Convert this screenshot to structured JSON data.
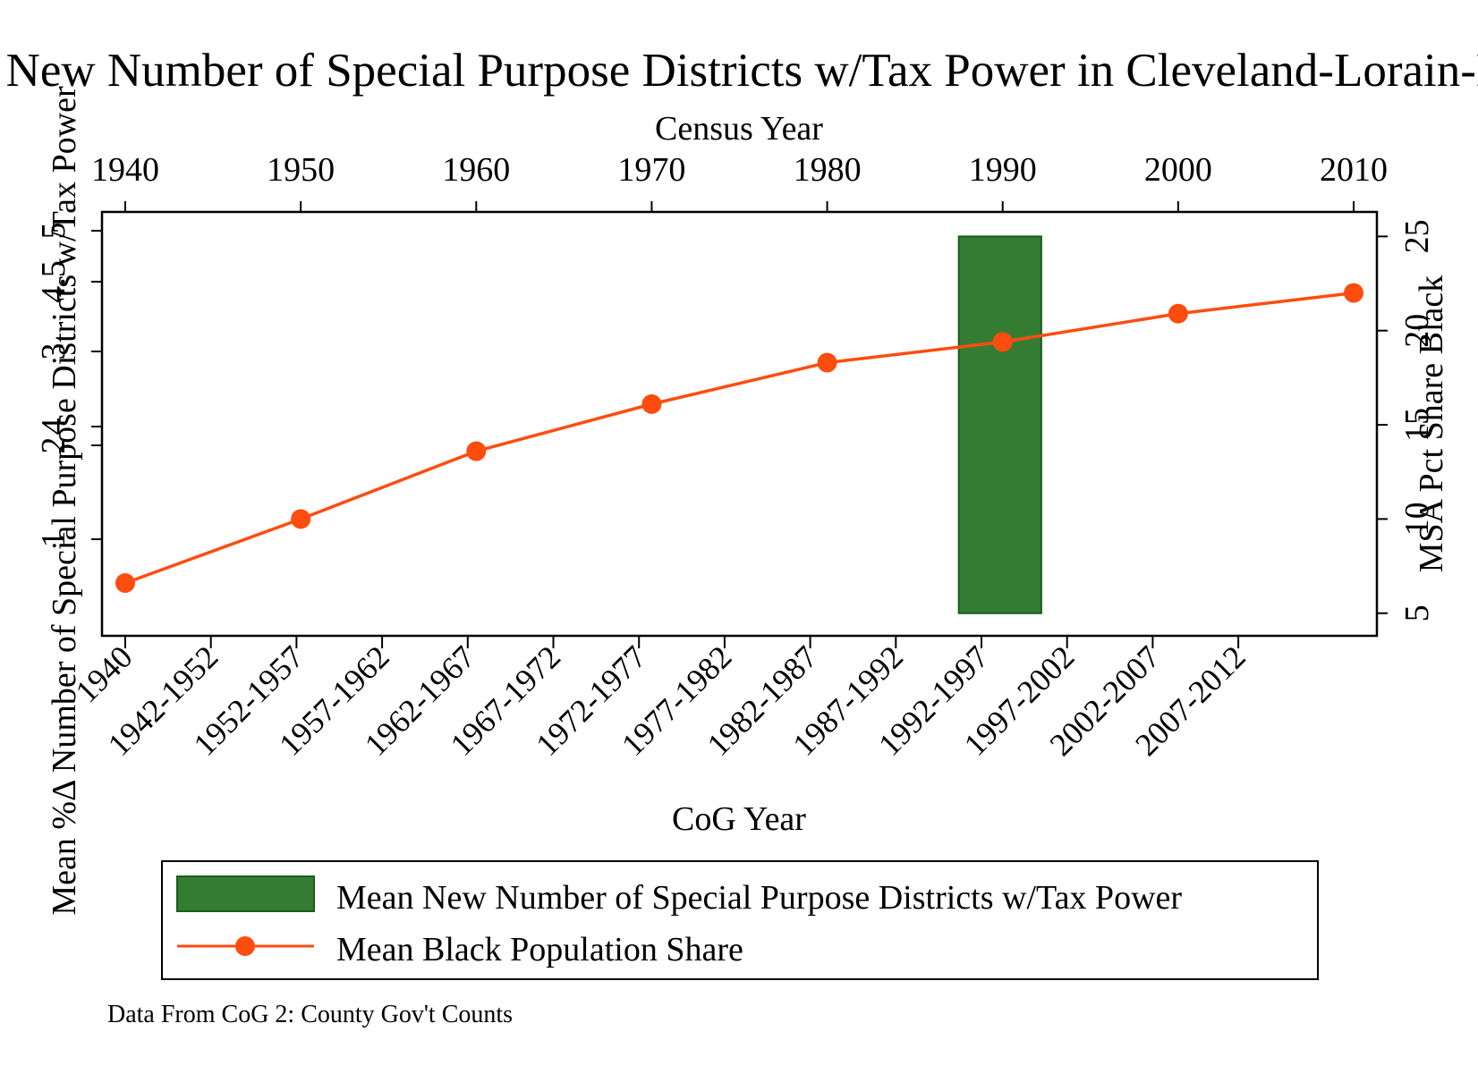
{
  "chart_data": {
    "type": "bar",
    "title": "Mean New Number of Special Purpose Districts w/Tax Power in Cleveland-Lorain-Elyria",
    "top_axis": {
      "label": "Census Year",
      "ticks": [
        "1940",
        "1950",
        "1960",
        "1970",
        "1980",
        "1990",
        "2000",
        "2010"
      ],
      "range": [
        1940,
        2010
      ]
    },
    "bottom_axis": {
      "label": "CoG Year",
      "categories": [
        "1940",
        "1942-1952",
        "1952-1957",
        "1957-1962",
        "1962-1967",
        "1967-1972",
        "1972-1977",
        "1977-1982",
        "1982-1987",
        "1987-1992",
        "1992-1997",
        "1997-2002",
        "2002-2007",
        "2007-2012"
      ]
    },
    "left_axis": {
      "label": "Mean %Δ Number of Special Purpose Districts w/Tax Power",
      "ticks": [
        "1",
        "2",
        "3",
        "4",
        "4.5",
        "5"
      ],
      "range": [
        0,
        5
      ]
    },
    "right_axis": {
      "label": "MSA Pct Share Black",
      "ticks": [
        "5",
        "10",
        "15",
        "20",
        "25"
      ],
      "range": [
        3.8,
        26.3
      ]
    },
    "bars": {
      "name": "Mean New Number of Special Purpose Districts w/Tax Power",
      "color": "#357c33",
      "points": [
        {
          "x_start": 1987.5,
          "x_end": 1992.2,
          "y_low": 5,
          "y_high": 25
        }
      ]
    },
    "line": {
      "name": "Mean Black Population Share",
      "color": "#ff4c0f",
      "x": [
        1940,
        1950,
        1960,
        1970,
        1980,
        1990,
        2000,
        2010
      ],
      "y": [
        6.6,
        10.0,
        13.6,
        16.1,
        18.3,
        19.4,
        20.9,
        22.0
      ]
    },
    "legend_position": "bottom",
    "note": "Data From CoG 2: County Gov't Counts",
    "grid": false
  }
}
